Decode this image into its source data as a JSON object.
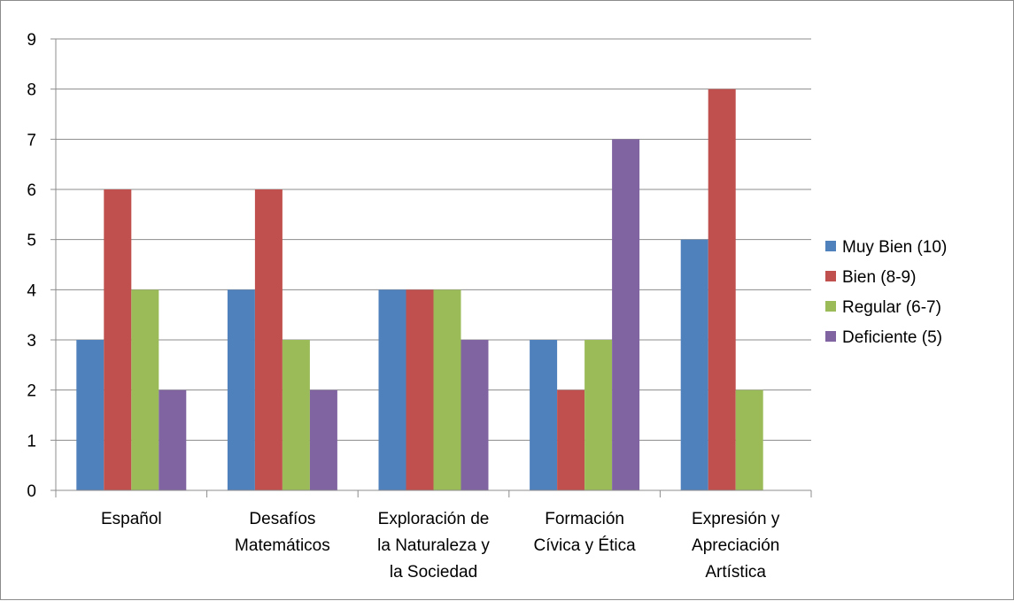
{
  "chart_data": {
    "type": "bar",
    "title": "",
    "xlabel": "",
    "ylabel": "",
    "ylim": [
      0,
      9
    ],
    "yticks": [
      0,
      1,
      2,
      3,
      4,
      5,
      6,
      7,
      8,
      9
    ],
    "grid": true,
    "legend_position": "right",
    "categories": [
      [
        "Español"
      ],
      [
        "Desafíos",
        "Matemáticos"
      ],
      [
        "Exploración de",
        "la Naturaleza y",
        "la Sociedad"
      ],
      [
        "Formación",
        "Cívica y Ética"
      ],
      [
        "Expresión y",
        "Apreciación",
        "Artística"
      ]
    ],
    "series": [
      {
        "name": "Muy Bien (10)",
        "color": "#4f81bd",
        "values": [
          3,
          4,
          4,
          3,
          5
        ]
      },
      {
        "name": "Bien (8-9)",
        "color": "#c0504d",
        "values": [
          6,
          6,
          4,
          2,
          8
        ]
      },
      {
        "name": "Regular (6-7)",
        "color": "#9bbb59",
        "values": [
          4,
          3,
          4,
          3,
          2
        ]
      },
      {
        "name": "Deficiente (5)",
        "color": "#8064a2",
        "values": [
          2,
          2,
          3,
          7,
          0
        ]
      }
    ]
  }
}
